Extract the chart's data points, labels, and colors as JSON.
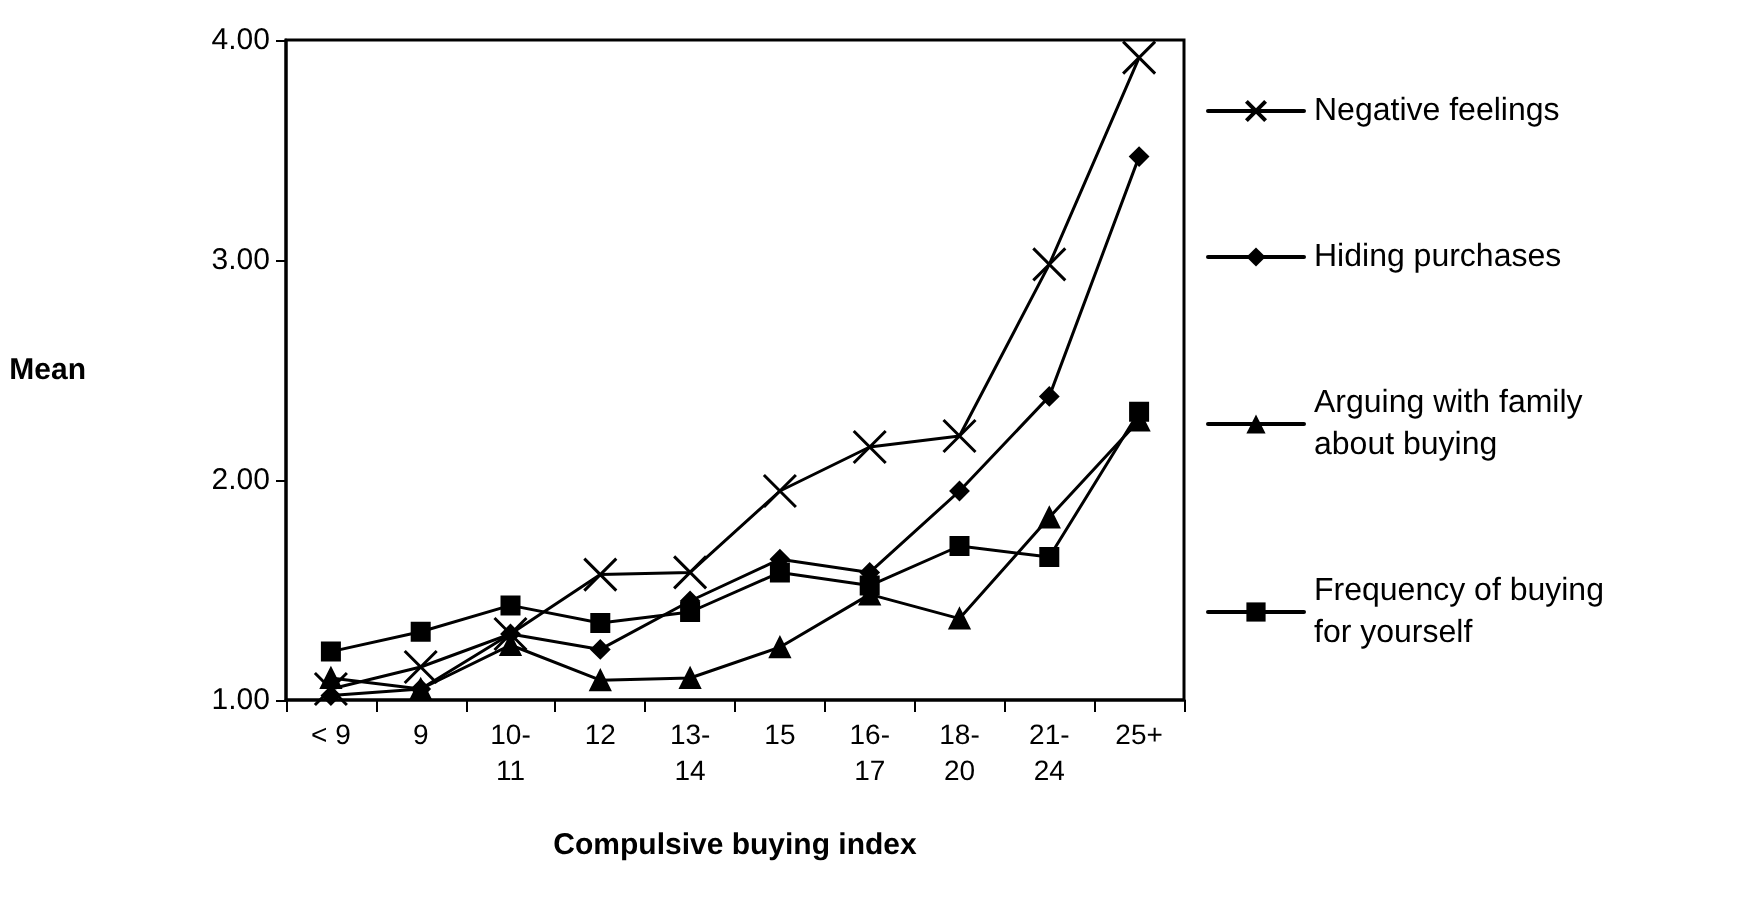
{
  "chart_data": {
    "type": "line",
    "xlabel": "Compulsive buying index",
    "ylabel": "Mean",
    "categories": [
      "< 9",
      "9",
      "10-11",
      "12",
      "13-14",
      "15",
      "16-17",
      "18-20",
      "21-24",
      "25+"
    ],
    "series": [
      {
        "name": "Negative feelings",
        "color": "#000000",
        "marker": "cross",
        "values": [
          1.05,
          1.15,
          1.3,
          1.57,
          1.58,
          1.95,
          2.15,
          2.2,
          2.98,
          3.92
        ]
      },
      {
        "name": "Hiding purchases",
        "color": "#000000",
        "marker": "diamond",
        "values": [
          1.02,
          1.05,
          1.3,
          1.23,
          1.45,
          1.64,
          1.58,
          1.95,
          2.38,
          3.47
        ]
      },
      {
        "name": "Arguing with family about buying",
        "color": "#000000",
        "marker": "triangle",
        "values": [
          1.1,
          1.05,
          1.25,
          1.09,
          1.1,
          1.24,
          1.48,
          1.37,
          1.83,
          2.27
        ]
      },
      {
        "name": "Frequency of buying for yourself",
        "color": "#000000",
        "marker": "square",
        "values": [
          1.22,
          1.31,
          1.43,
          1.35,
          1.4,
          1.58,
          1.52,
          1.7,
          1.65,
          2.31
        ]
      }
    ],
    "ylim": [
      1,
      4
    ],
    "yticks": [
      {
        "value": 1,
        "label": "1.00"
      },
      {
        "value": 2,
        "label": "2.00"
      },
      {
        "value": 3,
        "label": "3.00"
      },
      {
        "value": 4,
        "label": "4.00"
      }
    ],
    "grid": false,
    "legend": "right",
    "line_style": "solid"
  }
}
